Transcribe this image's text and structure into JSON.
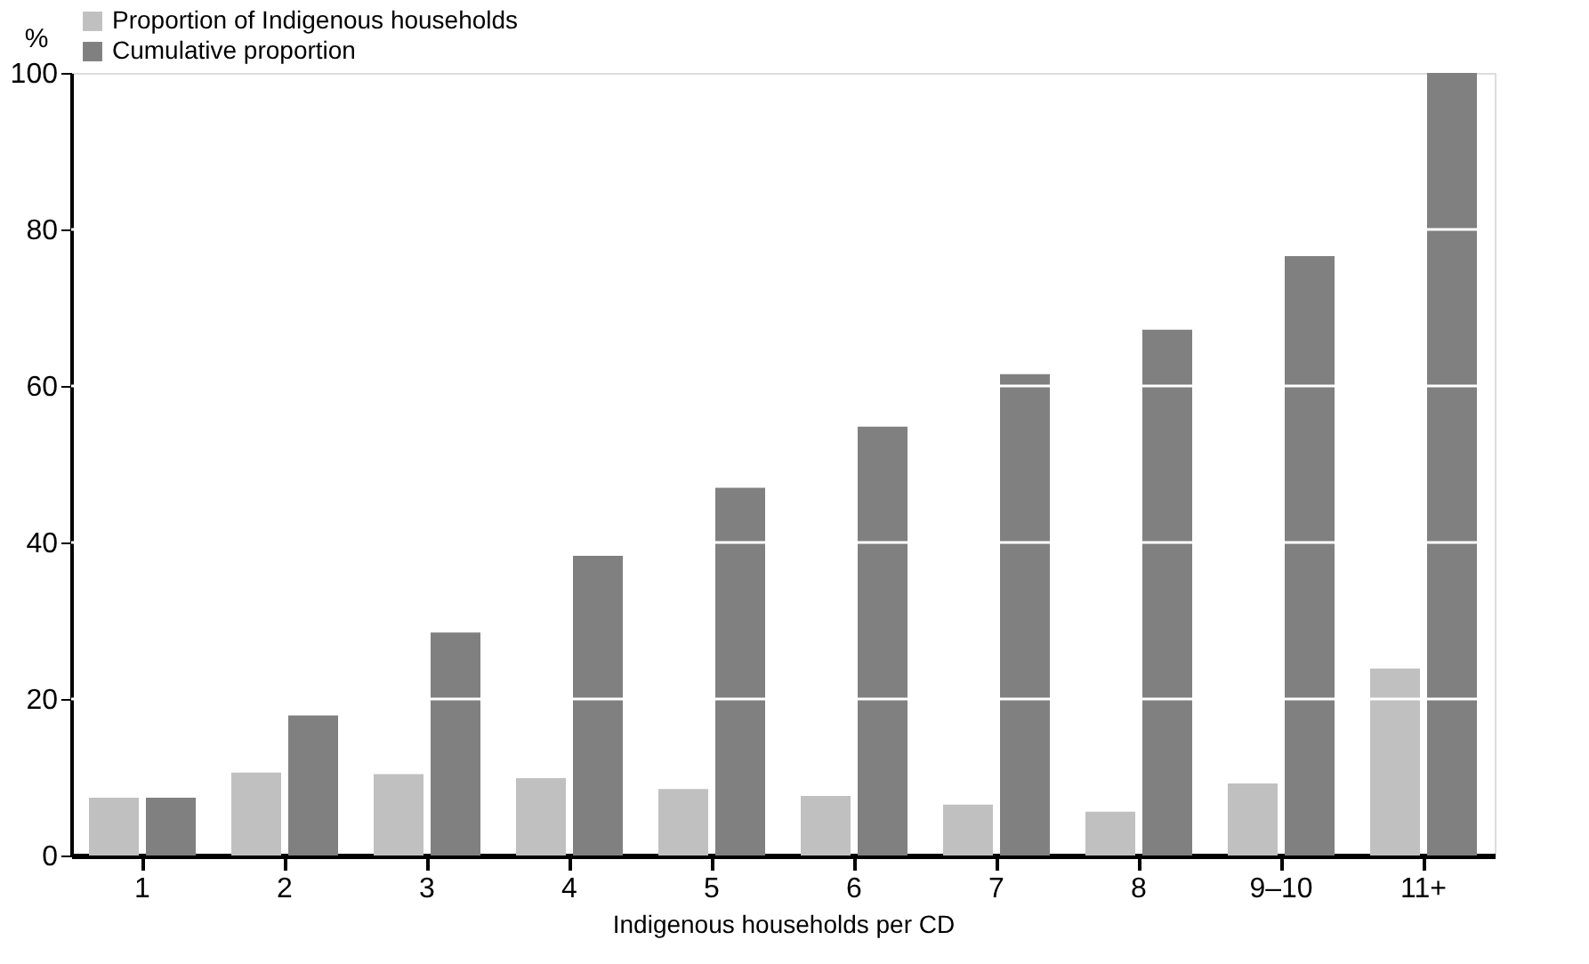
{
  "chart_data": {
    "type": "bar",
    "xlabel": "Indigenous households per CD",
    "ylabel": "%",
    "categories": [
      "1",
      "2",
      "3",
      "4",
      "5",
      "6",
      "7",
      "8",
      "9–10",
      "11+"
    ],
    "series": [
      {
        "name": "Proportion of Indigenous households",
        "color": "#c0c0c0",
        "values": [
          7.4,
          10.6,
          10.4,
          9.9,
          8.5,
          7.6,
          6.5,
          5.6,
          9.2,
          23.9
        ]
      },
      {
        "name": "Cumulative proportion",
        "color": "#808080",
        "values": [
          7.4,
          17.9,
          28.5,
          38.3,
          47.0,
          54.8,
          61.5,
          67.2,
          76.6,
          100
        ]
      }
    ],
    "ylim": [
      0,
      100
    ],
    "yticks": [
      0,
      20,
      40,
      60,
      80,
      100
    ],
    "grid": "y",
    "legend": "top left"
  }
}
